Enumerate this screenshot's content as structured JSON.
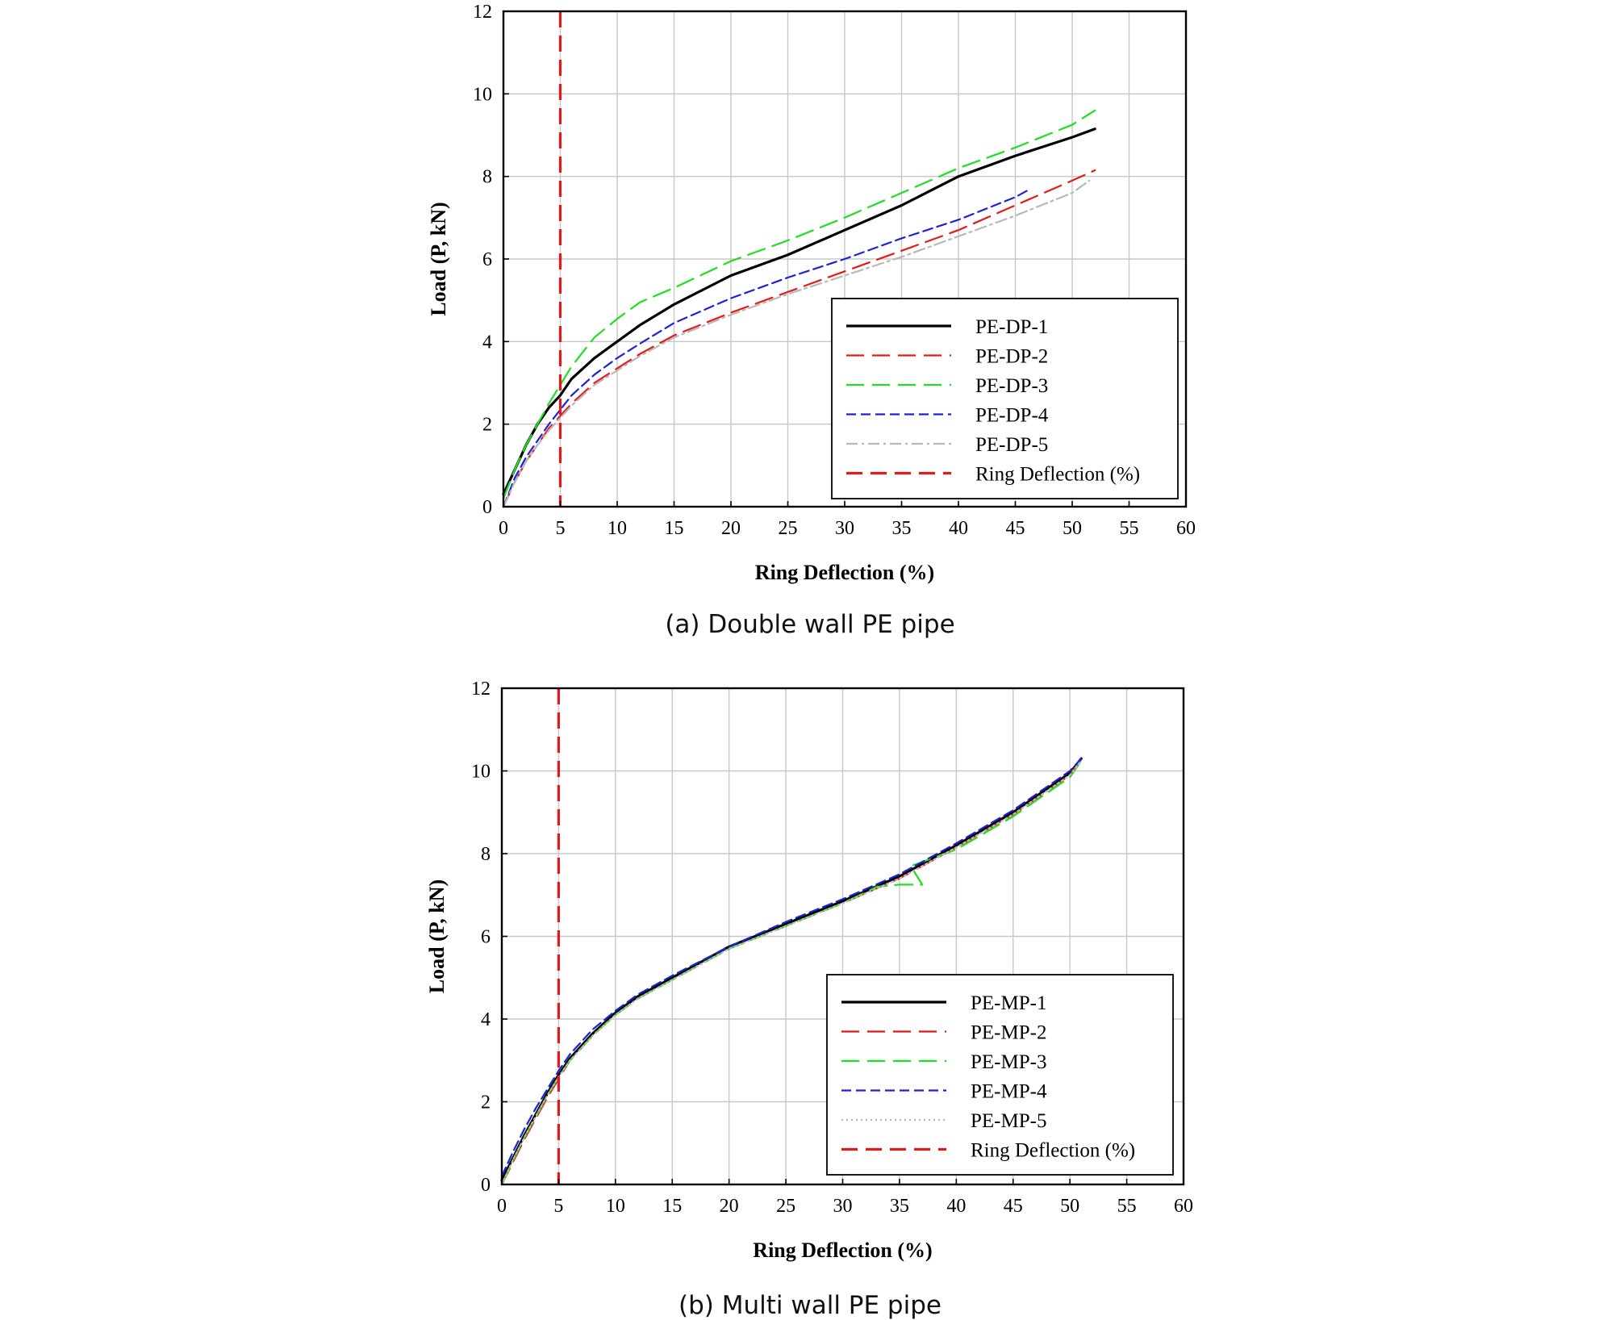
{
  "chart_data": [
    {
      "type": "line",
      "caption": "(a) Double wall PE pipe",
      "xlabel": "Ring Deflection (%)",
      "ylabel": "Load (P, kN)",
      "xlim": [
        0,
        60
      ],
      "ylim": [
        0,
        12
      ],
      "xticks": [
        "0",
        "5",
        "10",
        "15",
        "20",
        "25",
        "30",
        "35",
        "40",
        "45",
        "50",
        "55",
        "60"
      ],
      "yticks": [
        "0",
        "2",
        "4",
        "6",
        "8",
        "10",
        "12"
      ],
      "grid": true,
      "legend_position": "bottom-right",
      "reference_line": {
        "name": "Ring Deflection (%)",
        "x": 5,
        "color": "#e31a1c",
        "dash": "dashed"
      },
      "series": [
        {
          "name": "PE-DP-1",
          "color": "#000000",
          "dash": "solid",
          "points": [
            [
              0,
              0.3
            ],
            [
              1,
              0.9
            ],
            [
              2,
              1.5
            ],
            [
              3,
              2.0
            ],
            [
              4,
              2.4
            ],
            [
              5,
              2.7
            ],
            [
              6,
              3.1
            ],
            [
              8,
              3.6
            ],
            [
              10,
              4.0
            ],
            [
              12,
              4.4
            ],
            [
              15,
              4.9
            ],
            [
              20,
              5.6
            ],
            [
              25,
              6.1
            ],
            [
              30,
              6.7
            ],
            [
              35,
              7.3
            ],
            [
              40,
              8.0
            ],
            [
              45,
              8.5
            ],
            [
              50,
              8.95
            ],
            [
              52,
              9.15
            ]
          ]
        },
        {
          "name": "PE-DP-2",
          "color": "#e31a1c",
          "dash": "long-dash",
          "points": [
            [
              0,
              0
            ],
            [
              1,
              0.6
            ],
            [
              2,
              1.1
            ],
            [
              3,
              1.5
            ],
            [
              4,
              1.9
            ],
            [
              5,
              2.2
            ],
            [
              6,
              2.5
            ],
            [
              8,
              3.0
            ],
            [
              10,
              3.35
            ],
            [
              12,
              3.7
            ],
            [
              15,
              4.15
            ],
            [
              20,
              4.7
            ],
            [
              25,
              5.2
            ],
            [
              30,
              5.7
            ],
            [
              35,
              6.2
            ],
            [
              40,
              6.7
            ],
            [
              45,
              7.3
            ],
            [
              50,
              7.9
            ],
            [
              52,
              8.15
            ]
          ]
        },
        {
          "name": "PE-DP-3",
          "color": "#22dd22",
          "dash": "long-dash",
          "points": [
            [
              0,
              0.2
            ],
            [
              1,
              0.9
            ],
            [
              2,
              1.5
            ],
            [
              3,
              2.0
            ],
            [
              4,
              2.5
            ],
            [
              5,
              2.95
            ],
            [
              6,
              3.4
            ],
            [
              8,
              4.1
            ],
            [
              10,
              4.55
            ],
            [
              12,
              4.95
            ],
            [
              15,
              5.3
            ],
            [
              20,
              5.95
            ],
            [
              25,
              6.45
            ],
            [
              30,
              7.0
            ],
            [
              35,
              7.6
            ],
            [
              40,
              8.2
            ],
            [
              45,
              8.7
            ],
            [
              50,
              9.25
            ],
            [
              52,
              9.6
            ]
          ]
        },
        {
          "name": "PE-DP-4",
          "color": "#1e22d6",
          "dash": "dash",
          "points": [
            [
              0,
              0
            ],
            [
              1,
              0.7
            ],
            [
              2,
              1.2
            ],
            [
              3,
              1.6
            ],
            [
              4,
              2.0
            ],
            [
              5,
              2.35
            ],
            [
              6,
              2.7
            ],
            [
              8,
              3.2
            ],
            [
              10,
              3.6
            ],
            [
              12,
              3.95
            ],
            [
              15,
              4.45
            ],
            [
              20,
              5.05
            ],
            [
              25,
              5.55
            ],
            [
              30,
              6.0
            ],
            [
              35,
              6.5
            ],
            [
              40,
              6.95
            ],
            [
              45,
              7.5
            ],
            [
              46,
              7.65
            ]
          ]
        },
        {
          "name": "PE-DP-5",
          "color": "#b8b8b8",
          "dash": "dash-dot",
          "points": [
            [
              0,
              0
            ],
            [
              1,
              0.6
            ],
            [
              2,
              1.1
            ],
            [
              3,
              1.5
            ],
            [
              4,
              1.85
            ],
            [
              5,
              2.15
            ],
            [
              6,
              2.45
            ],
            [
              8,
              2.95
            ],
            [
              10,
              3.3
            ],
            [
              12,
              3.65
            ],
            [
              15,
              4.1
            ],
            [
              20,
              4.65
            ],
            [
              25,
              5.15
            ],
            [
              30,
              5.6
            ],
            [
              35,
              6.05
            ],
            [
              40,
              6.55
            ],
            [
              45,
              7.05
            ],
            [
              50,
              7.6
            ],
            [
              51.5,
              7.9
            ]
          ]
        }
      ]
    },
    {
      "type": "line",
      "caption": "(b) Multi wall PE pipe",
      "xlabel": "Ring Deflection (%)",
      "ylabel": "Load (P, kN)",
      "xlim": [
        0,
        60
      ],
      "ylim": [
        0,
        12
      ],
      "xticks": [
        "0",
        "5",
        "10",
        "15",
        "20",
        "25",
        "30",
        "35",
        "40",
        "45",
        "50",
        "55",
        "60"
      ],
      "yticks": [
        "0",
        "2",
        "4",
        "6",
        "8",
        "10",
        "12"
      ],
      "grid": true,
      "legend_position": "bottom-right",
      "reference_line": {
        "name": "Ring Deflection (%)",
        "x": 5,
        "color": "#e31a1c",
        "dash": "dashed"
      },
      "series": [
        {
          "name": "PE-MP-1",
          "color": "#000000",
          "dash": "solid",
          "points": [
            [
              0,
              0.1
            ],
            [
              1,
              0.65
            ],
            [
              2,
              1.2
            ],
            [
              3,
              1.7
            ],
            [
              4,
              2.2
            ],
            [
              5,
              2.65
            ],
            [
              6,
              3.05
            ],
            [
              8,
              3.65
            ],
            [
              10,
              4.15
            ],
            [
              12,
              4.55
            ],
            [
              15,
              5.0
            ],
            [
              20,
              5.75
            ],
            [
              25,
              6.3
            ],
            [
              30,
              6.85
            ],
            [
              35,
              7.45
            ],
            [
              40,
              8.2
            ],
            [
              45,
              9.0
            ],
            [
              50,
              9.95
            ],
            [
              51,
              10.3
            ]
          ]
        },
        {
          "name": "PE-MP-2",
          "color": "#e31a1c",
          "dash": "long-dash",
          "points": [
            [
              0,
              0
            ],
            [
              1,
              0.55
            ],
            [
              2,
              1.1
            ],
            [
              3,
              1.6
            ],
            [
              4,
              2.1
            ],
            [
              5,
              2.55
            ],
            [
              6,
              3.0
            ],
            [
              8,
              3.6
            ],
            [
              10,
              4.1
            ],
            [
              12,
              4.5
            ],
            [
              15,
              4.95
            ],
            [
              20,
              5.7
            ],
            [
              25,
              6.25
            ],
            [
              30,
              6.8
            ],
            [
              35,
              7.4
            ],
            [
              40,
              8.15
            ],
            [
              45,
              8.95
            ],
            [
              50,
              9.9
            ],
            [
              51,
              10.3
            ]
          ]
        },
        {
          "name": "PE-MP-3",
          "color": "#22dd22",
          "dash": "long-dash",
          "points": [
            [
              0,
              0
            ],
            [
              1,
              0.6
            ],
            [
              2,
              1.15
            ],
            [
              3,
              1.65
            ],
            [
              4,
              2.15
            ],
            [
              5,
              2.6
            ],
            [
              6,
              3.0
            ],
            [
              8,
              3.6
            ],
            [
              10,
              4.1
            ],
            [
              12,
              4.5
            ],
            [
              15,
              4.95
            ],
            [
              20,
              5.7
            ],
            [
              25,
              6.25
            ],
            [
              30,
              6.8
            ],
            [
              33,
              7.2
            ],
            [
              35,
              7.25
            ],
            [
              37,
              7.25
            ],
            [
              36,
              7.7
            ],
            [
              40,
              8.1
            ],
            [
              45,
              8.9
            ],
            [
              50,
              9.85
            ],
            [
              51,
              10.25
            ]
          ]
        },
        {
          "name": "PE-MP-4",
          "color": "#1e22d6",
          "dash": "dash",
          "points": [
            [
              0,
              0.2
            ],
            [
              1,
              0.8
            ],
            [
              2,
              1.35
            ],
            [
              3,
              1.85
            ],
            [
              4,
              2.3
            ],
            [
              5,
              2.75
            ],
            [
              6,
              3.15
            ],
            [
              8,
              3.75
            ],
            [
              10,
              4.2
            ],
            [
              12,
              4.6
            ],
            [
              15,
              5.05
            ],
            [
              20,
              5.75
            ],
            [
              25,
              6.35
            ],
            [
              30,
              6.9
            ],
            [
              35,
              7.5
            ],
            [
              40,
              8.25
            ],
            [
              45,
              9.05
            ],
            [
              50,
              10.0
            ],
            [
              51,
              10.3
            ]
          ]
        },
        {
          "name": "PE-MP-5",
          "color": "#b8b8b8",
          "dash": "dot",
          "points": [
            [
              0,
              0
            ],
            [
              1,
              0.6
            ],
            [
              2,
              1.15
            ],
            [
              3,
              1.65
            ],
            [
              4,
              2.15
            ],
            [
              5,
              2.6
            ],
            [
              6,
              3.0
            ],
            [
              8,
              3.6
            ],
            [
              10,
              4.1
            ],
            [
              12,
              4.5
            ],
            [
              15,
              4.95
            ],
            [
              20,
              5.7
            ],
            [
              25,
              6.25
            ],
            [
              30,
              6.8
            ],
            [
              35,
              7.4
            ],
            [
              40,
              8.15
            ],
            [
              45,
              8.95
            ],
            [
              50,
              9.9
            ],
            [
              51,
              10.25
            ]
          ]
        }
      ]
    }
  ]
}
